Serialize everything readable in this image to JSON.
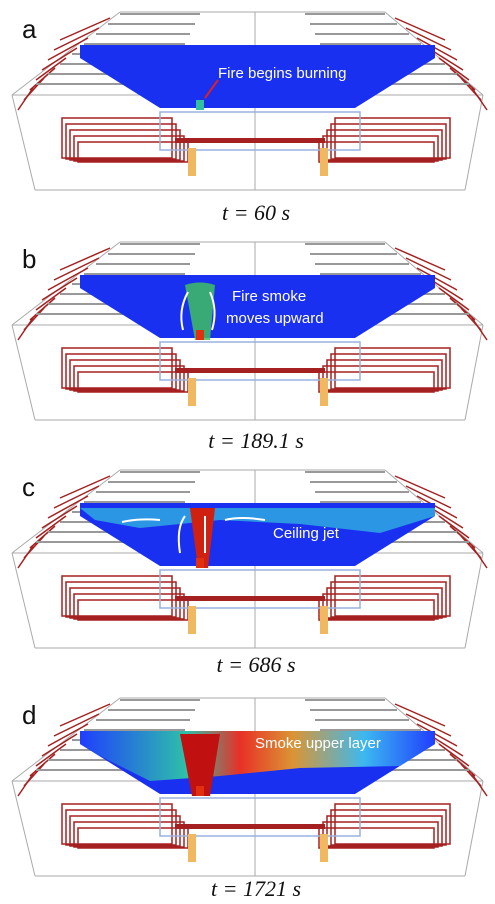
{
  "panels": [
    {
      "label": "a",
      "annotation": [
        "Fire begins burning"
      ],
      "caption": "t = 60 s"
    },
    {
      "label": "b",
      "annotation": [
        "Fire smoke",
        "moves upward"
      ],
      "caption": "t = 189.1 s"
    },
    {
      "label": "c",
      "annotation": [
        "Ceiling jet"
      ],
      "caption": "t = 686 s"
    },
    {
      "label": "d",
      "annotation": [
        "Smoke upper layer"
      ],
      "caption": "t = 1721 s"
    }
  ]
}
